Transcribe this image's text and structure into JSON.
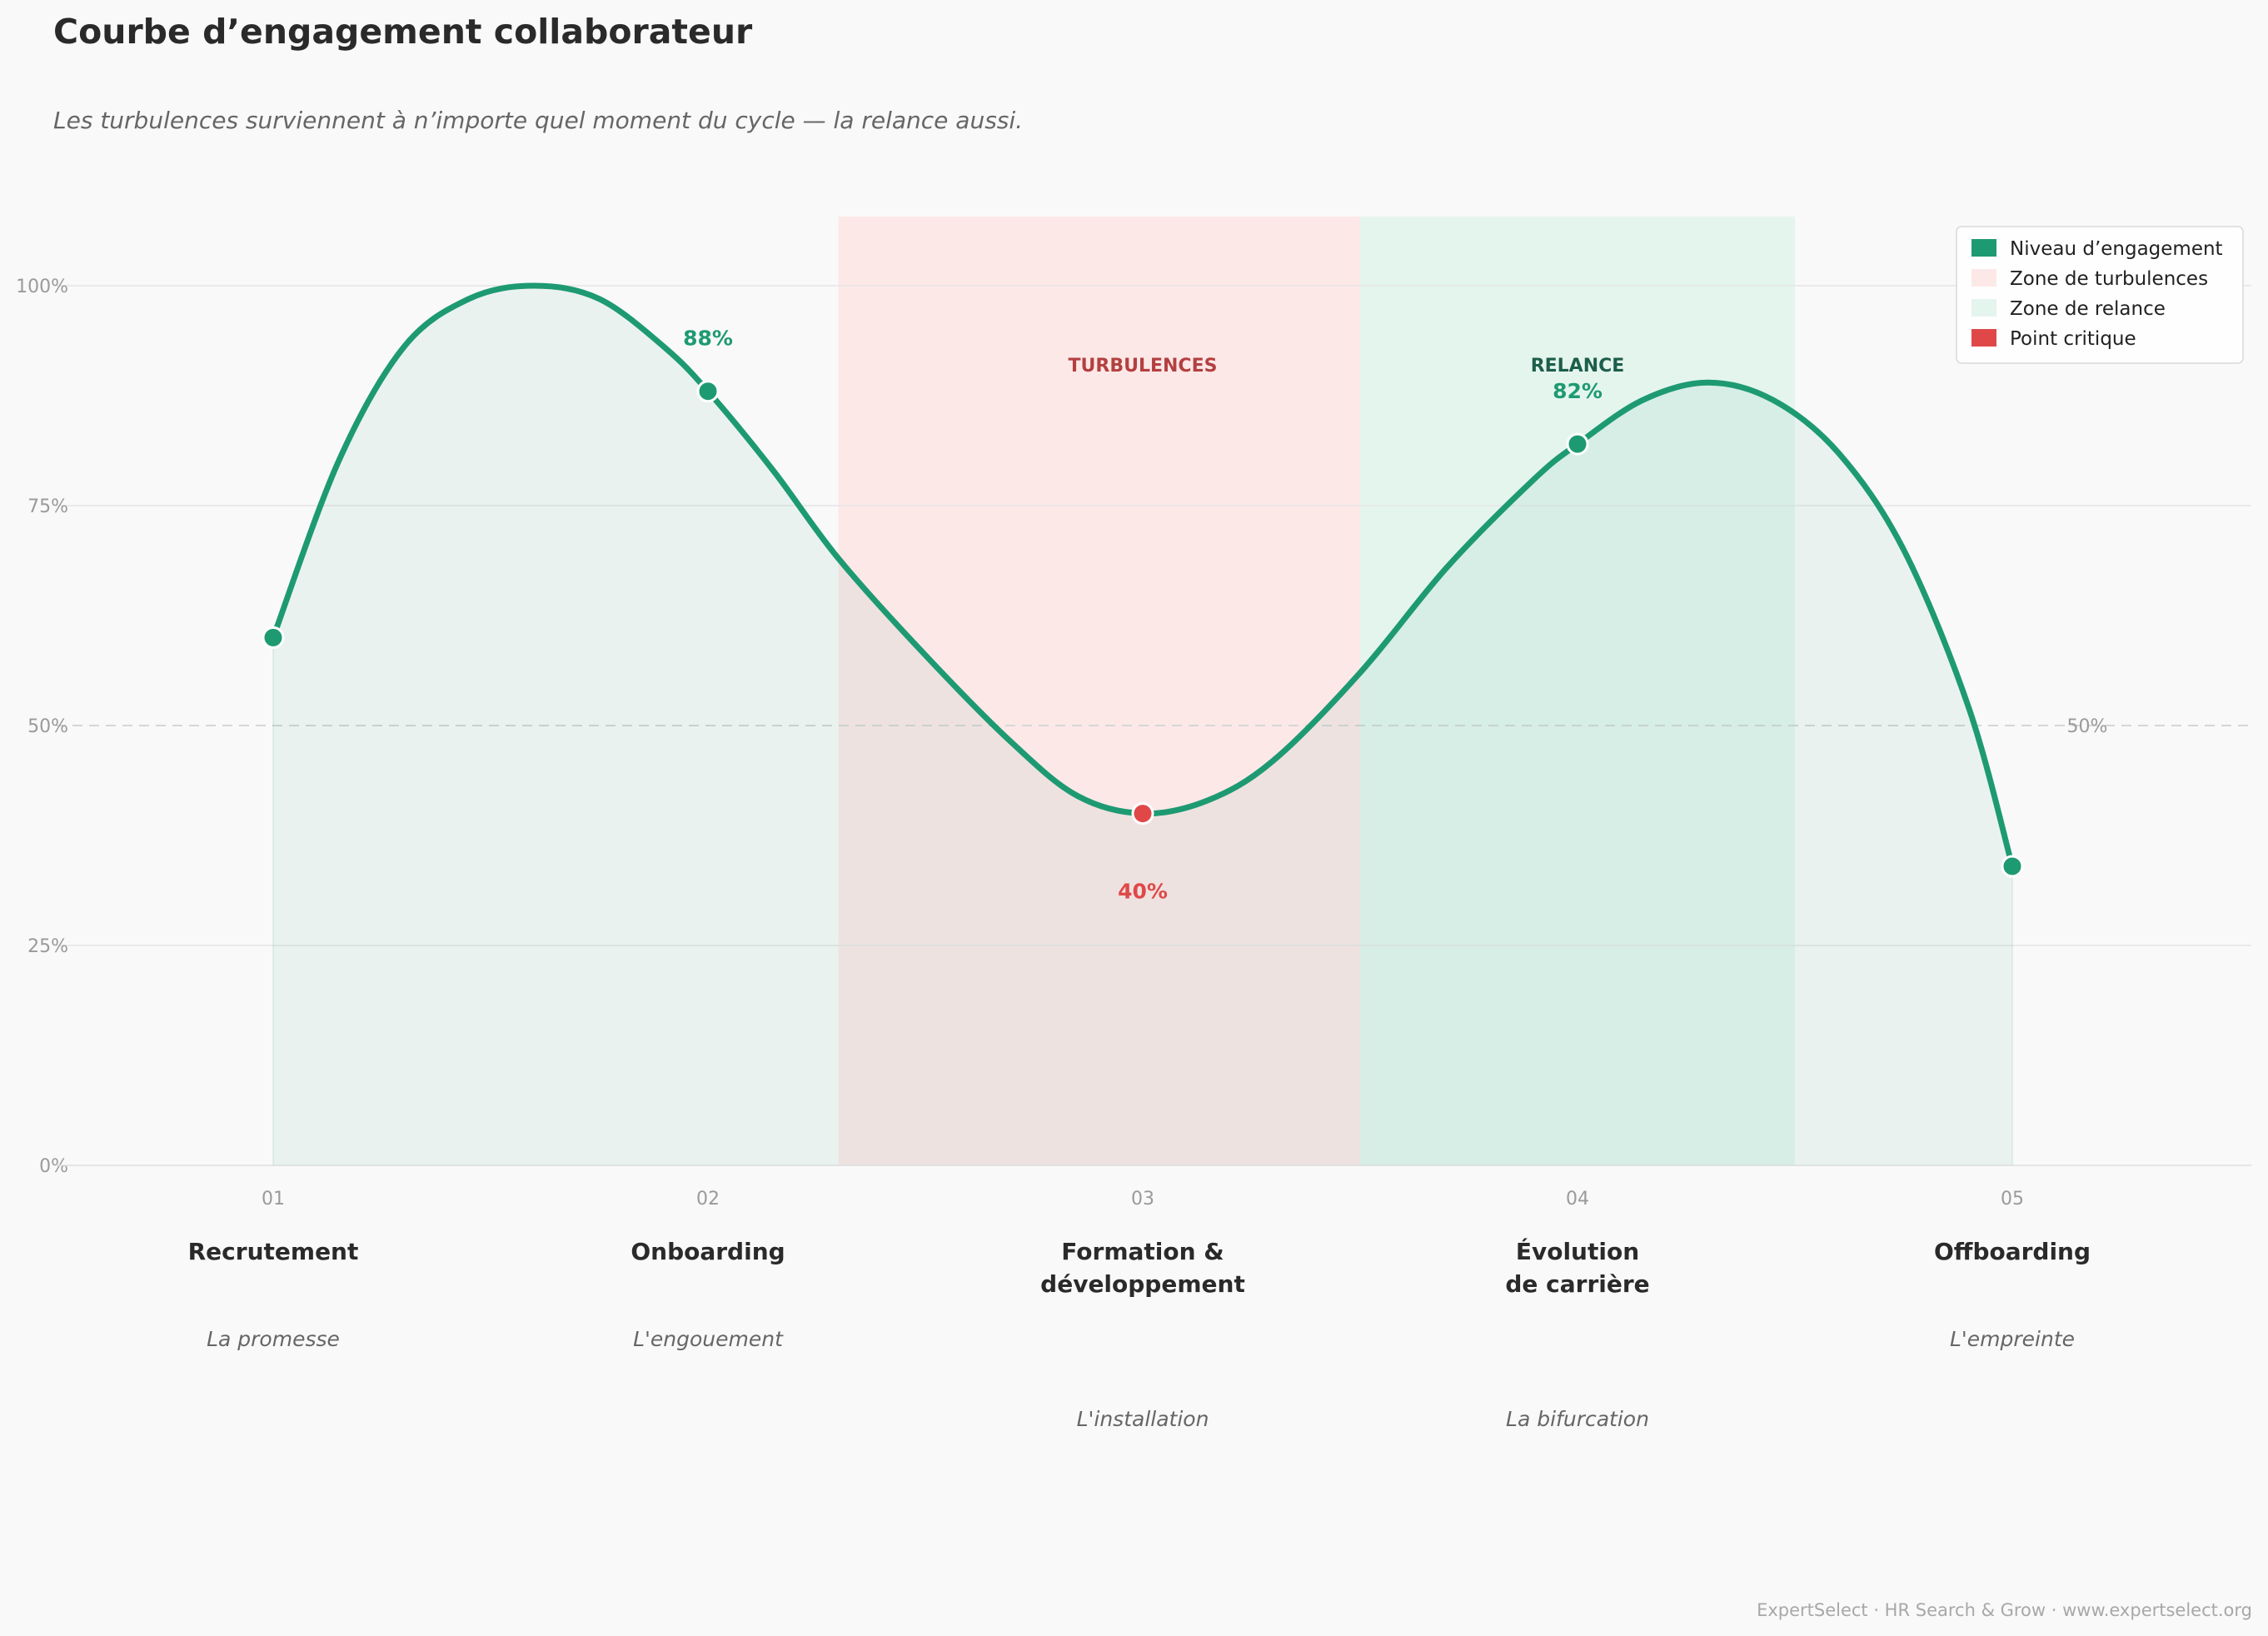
{
  "chart_data": {
    "type": "line",
    "title": "Courbe d’engagement collaborateur",
    "subtitle": "Les turbulences surviennent à n’importe quel moment du cycle — la relance aussi.",
    "ylim": [
      0,
      100
    ],
    "xlim": [
      0.5,
      5.55
    ],
    "y_ticks": [
      {
        "value": 0,
        "label": "0%"
      },
      {
        "value": 25,
        "label": "25%"
      },
      {
        "value": 50,
        "label": "50%"
      },
      {
        "value": 75,
        "label": "75%"
      },
      {
        "value": 100,
        "label": "100%"
      }
    ],
    "x_ticks": [
      "01",
      "02",
      "03",
      "04",
      "05"
    ],
    "stages": [
      {
        "x": 1,
        "name": [
          "Recrutement"
        ],
        "tagline": "La promesse"
      },
      {
        "x": 2,
        "name": [
          "Onboarding"
        ],
        "tagline": "L'engouement"
      },
      {
        "x": 3,
        "name": [
          "Formation &",
          "développement"
        ],
        "tagline": "L'installation"
      },
      {
        "x": 4,
        "name": [
          "Évolution",
          "de carrière"
        ],
        "tagline": "La bifurcation"
      },
      {
        "x": 5,
        "name": [
          "Offboarding"
        ],
        "tagline": "L'empreinte"
      }
    ],
    "series": [
      {
        "name": "Niveau d’engagement",
        "color": "#1e9a72",
        "points": [
          {
            "x": 1,
            "y": 60
          },
          {
            "x": 2,
            "y": 88
          },
          {
            "x": 3,
            "y": 40
          },
          {
            "x": 4,
            "y": 82
          },
          {
            "x": 5,
            "y": 34
          }
        ],
        "curve": [
          [
            1.0,
            60
          ],
          [
            1.15,
            80
          ],
          [
            1.3,
            93
          ],
          [
            1.45,
            98.5
          ],
          [
            1.6,
            100
          ],
          [
            1.75,
            98.5
          ],
          [
            1.9,
            93
          ],
          [
            2.0,
            88
          ],
          [
            2.15,
            79
          ],
          [
            2.3,
            69
          ],
          [
            2.5,
            58
          ],
          [
            2.7,
            48
          ],
          [
            2.85,
            42
          ],
          [
            3.0,
            40
          ],
          [
            3.15,
            41.5
          ],
          [
            3.3,
            46
          ],
          [
            3.5,
            56
          ],
          [
            3.7,
            68
          ],
          [
            3.9,
            78
          ],
          [
            4.0,
            82
          ],
          [
            4.15,
            87
          ],
          [
            4.3,
            89
          ],
          [
            4.45,
            87
          ],
          [
            4.6,
            81
          ],
          [
            4.75,
            70
          ],
          [
            4.9,
            52
          ],
          [
            5.0,
            34
          ]
        ]
      }
    ],
    "data_labels": [
      {
        "x": 2,
        "text": "88%",
        "color": "#1e9a72",
        "above": true
      },
      {
        "x": 3,
        "text": "40%",
        "color": "#e04848",
        "above": false
      },
      {
        "x": 4,
        "text": "82%",
        "color": "#1e9a72",
        "above": true
      }
    ],
    "critical_point": {
      "x": 3,
      "y": 40,
      "color": "#e04848"
    },
    "zones": [
      {
        "name": "Zone de turbulences",
        "label": "TURBULENCES",
        "x0": 2.3,
        "x1": 3.5,
        "color": "#fde8e8",
        "label_color": "#b34040"
      },
      {
        "name": "Zone de relance",
        "label": "RELANCE",
        "x0": 3.5,
        "x1": 4.5,
        "color": "#e4f5ee",
        "label_color": "#1d5e4a"
      }
    ],
    "reference_line": {
      "y": 50,
      "label": "50%"
    },
    "legend": {
      "position": "top-right",
      "items": [
        {
          "label": "Niveau d’engagement",
          "color": "#1e9a72"
        },
        {
          "label": "Zone de turbulences",
          "color": "#fde8e8"
        },
        {
          "label": "Zone de relance",
          "color": "#e4f5ee"
        },
        {
          "label": "Point critique",
          "color": "#e04848"
        }
      ]
    },
    "grid": true,
    "footer": "ExpertSelect · HR Search & Grow · www.expertselect.org"
  }
}
